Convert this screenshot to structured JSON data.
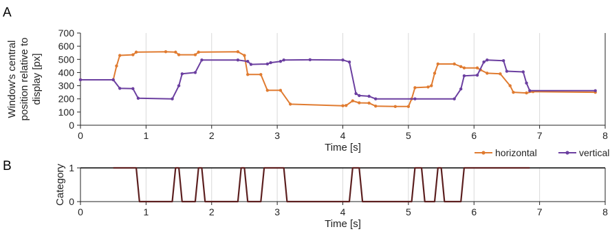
{
  "chart_data": [
    {
      "panel": "A",
      "type": "line",
      "xlabel": "Time [s]",
      "ylabel_lines": [
        "Window's central",
        "position relative to",
        "display [px]"
      ],
      "xlim": [
        0,
        8
      ],
      "ylim": [
        0,
        700
      ],
      "xticks": [
        0,
        1,
        2,
        3,
        4,
        5,
        6,
        7,
        8
      ],
      "yticks": [
        0,
        100,
        200,
        300,
        400,
        500,
        600,
        700
      ],
      "grid": "vertical",
      "legend": "bottom-right",
      "series": [
        {
          "name": "horizontal",
          "color": "#E07B30",
          "points": [
            [
              0,
              345
            ],
            [
              0.5,
              345
            ],
            [
              0.55,
              450
            ],
            [
              0.6,
              530
            ],
            [
              0.8,
              535
            ],
            [
              0.85,
              555
            ],
            [
              1.3,
              558
            ],
            [
              1.45,
              555
            ],
            [
              1.5,
              535
            ],
            [
              1.75,
              535
            ],
            [
              1.8,
              555
            ],
            [
              2.4,
              558
            ],
            [
              2.5,
              530
            ],
            [
              2.55,
              385
            ],
            [
              2.75,
              385
            ],
            [
              2.85,
              265
            ],
            [
              3.05,
              265
            ],
            [
              3.2,
              160
            ],
            [
              4,
              148
            ],
            [
              4.05,
              150
            ],
            [
              4.15,
              185
            ],
            [
              4.25,
              170
            ],
            [
              4.4,
              168
            ],
            [
              4.5,
              145
            ],
            [
              4.8,
              142
            ],
            [
              5.0,
              142
            ],
            [
              5.05,
              200
            ],
            [
              5.1,
              285
            ],
            [
              5.3,
              290
            ],
            [
              5.35,
              300
            ],
            [
              5.4,
              395
            ],
            [
              5.45,
              465
            ],
            [
              5.7,
              465
            ],
            [
              5.8,
              445
            ],
            [
              5.85,
              435
            ],
            [
              6.05,
              435
            ],
            [
              6.1,
              420
            ],
            [
              6.2,
              395
            ],
            [
              6.4,
              390
            ],
            [
              6.55,
              300
            ],
            [
              6.6,
              250
            ],
            [
              6.8,
              245
            ],
            [
              6.9,
              255
            ],
            [
              7.85,
              250
            ]
          ]
        },
        {
          "name": "vertical",
          "color": "#6B3FA0",
          "points": [
            [
              0,
              345
            ],
            [
              0.5,
              345
            ],
            [
              0.6,
              280
            ],
            [
              0.8,
              278
            ],
            [
              0.88,
              205
            ],
            [
              1.4,
              200
            ],
            [
              1.5,
              300
            ],
            [
              1.55,
              390
            ],
            [
              1.75,
              400
            ],
            [
              1.85,
              495
            ],
            [
              2.4,
              495
            ],
            [
              2.55,
              485
            ],
            [
              2.6,
              462
            ],
            [
              2.85,
              465
            ],
            [
              2.9,
              475
            ],
            [
              3.05,
              485
            ],
            [
              3.1,
              495
            ],
            [
              3.5,
              497
            ],
            [
              4.0,
              495
            ],
            [
              4.1,
              480
            ],
            [
              4.2,
              240
            ],
            [
              4.25,
              225
            ],
            [
              4.4,
              220
            ],
            [
              4.5,
              200
            ],
            [
              5.1,
              200
            ],
            [
              5.7,
              200
            ],
            [
              5.8,
              275
            ],
            [
              5.85,
              375
            ],
            [
              6.05,
              380
            ],
            [
              6.15,
              480
            ],
            [
              6.2,
              495
            ],
            [
              6.45,
              490
            ],
            [
              6.5,
              410
            ],
            [
              6.75,
              405
            ],
            [
              6.8,
              320
            ],
            [
              6.85,
              262
            ],
            [
              7.85,
              262
            ]
          ]
        }
      ]
    },
    {
      "panel": "B",
      "type": "line",
      "xlabel": "Time [s]",
      "ylabel": "Category",
      "xlim": [
        0,
        8
      ],
      "ylim": [
        0,
        1
      ],
      "xticks": [
        0,
        1,
        2,
        3,
        4,
        5,
        6,
        7,
        8
      ],
      "yticks": [
        0,
        1
      ],
      "grid": "vertical",
      "series": [
        {
          "name": "category",
          "color": "#5C1F1F",
          "points": [
            [
              0.5,
              1
            ],
            [
              0.85,
              1
            ],
            [
              0.9,
              0
            ],
            [
              1.4,
              0
            ],
            [
              1.45,
              1
            ],
            [
              1.5,
              1
            ],
            [
              1.55,
              0
            ],
            [
              1.75,
              0
            ],
            [
              1.8,
              1
            ],
            [
              1.85,
              1
            ],
            [
              1.9,
              0
            ],
            [
              2.4,
              0
            ],
            [
              2.45,
              1
            ],
            [
              2.5,
              1
            ],
            [
              2.55,
              0
            ],
            [
              2.75,
              0
            ],
            [
              2.8,
              1
            ],
            [
              3.1,
              1
            ],
            [
              3.15,
              0
            ],
            [
              4.1,
              0
            ],
            [
              4.15,
              1
            ],
            [
              4.25,
              1
            ],
            [
              4.3,
              0
            ],
            [
              5.05,
              0
            ],
            [
              5.1,
              1
            ],
            [
              5.2,
              1
            ],
            [
              5.25,
              0
            ],
            [
              5.4,
              0
            ],
            [
              5.45,
              1
            ],
            [
              5.5,
              1
            ],
            [
              5.55,
              0
            ],
            [
              5.8,
              0
            ],
            [
              5.85,
              1
            ],
            [
              6.85,
              1
            ]
          ]
        }
      ]
    }
  ],
  "labels": {
    "panel_a": "A",
    "panel_b": "B"
  }
}
